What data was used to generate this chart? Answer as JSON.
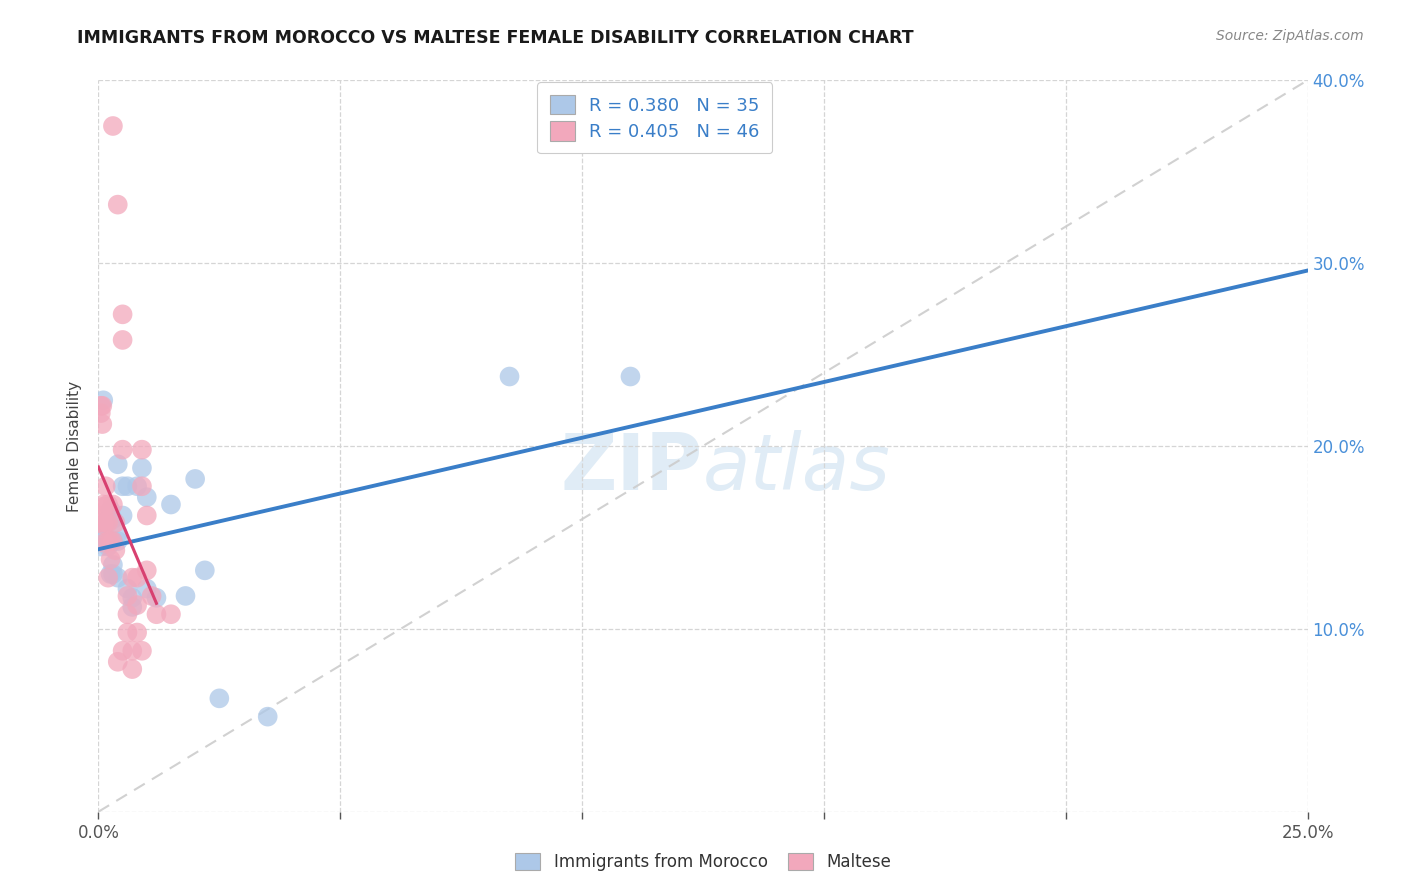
{
  "title": "IMMIGRANTS FROM MOROCCO VS MALTESE FEMALE DISABILITY CORRELATION CHART",
  "source": "Source: ZipAtlas.com",
  "ylabel": "Female Disability",
  "xlim": [
    0.0,
    0.25
  ],
  "ylim": [
    0.0,
    0.4
  ],
  "xticks": [
    0.0,
    0.05,
    0.1,
    0.15,
    0.2,
    0.25
  ],
  "yticks": [
    0.0,
    0.1,
    0.2,
    0.3,
    0.4
  ],
  "legend1_label": "Immigrants from Morocco",
  "legend2_label": "Maltese",
  "R1": 0.38,
  "N1": 35,
  "R2": 0.405,
  "N2": 46,
  "color_blue": "#adc8e8",
  "color_pink": "#f2a8bc",
  "line_blue": "#3a7ec8",
  "line_pink": "#d84070",
  "diag_color": "#cccccc",
  "watermark_color": "#cce0f0",
  "blue_points": [
    [
      0.0005,
      0.145
    ],
    [
      0.001,
      0.225
    ],
    [
      0.001,
      0.155
    ],
    [
      0.0015,
      0.15
    ],
    [
      0.002,
      0.16
    ],
    [
      0.002,
      0.145
    ],
    [
      0.0025,
      0.165
    ],
    [
      0.0025,
      0.13
    ],
    [
      0.003,
      0.135
    ],
    [
      0.003,
      0.13
    ],
    [
      0.003,
      0.16
    ],
    [
      0.003,
      0.148
    ],
    [
      0.004,
      0.19
    ],
    [
      0.004,
      0.148
    ],
    [
      0.004,
      0.152
    ],
    [
      0.004,
      0.128
    ],
    [
      0.005,
      0.178
    ],
    [
      0.005,
      0.162
    ],
    [
      0.006,
      0.178
    ],
    [
      0.006,
      0.122
    ],
    [
      0.007,
      0.117
    ],
    [
      0.007,
      0.112
    ],
    [
      0.008,
      0.178
    ],
    [
      0.009,
      0.188
    ],
    [
      0.01,
      0.122
    ],
    [
      0.01,
      0.172
    ],
    [
      0.012,
      0.117
    ],
    [
      0.015,
      0.168
    ],
    [
      0.018,
      0.118
    ],
    [
      0.02,
      0.182
    ],
    [
      0.022,
      0.132
    ],
    [
      0.025,
      0.062
    ],
    [
      0.035,
      0.052
    ],
    [
      0.085,
      0.238
    ],
    [
      0.11,
      0.238
    ]
  ],
  "pink_points": [
    [
      0.0003,
      0.158
    ],
    [
      0.0005,
      0.222
    ],
    [
      0.0005,
      0.218
    ],
    [
      0.0008,
      0.222
    ],
    [
      0.0008,
      0.212
    ],
    [
      0.001,
      0.168
    ],
    [
      0.001,
      0.162
    ],
    [
      0.001,
      0.157
    ],
    [
      0.0012,
      0.147
    ],
    [
      0.0012,
      0.167
    ],
    [
      0.0015,
      0.178
    ],
    [
      0.0015,
      0.158
    ],
    [
      0.002,
      0.168
    ],
    [
      0.002,
      0.158
    ],
    [
      0.002,
      0.148
    ],
    [
      0.002,
      0.128
    ],
    [
      0.0025,
      0.148
    ],
    [
      0.0025,
      0.138
    ],
    [
      0.003,
      0.168
    ],
    [
      0.003,
      0.148
    ],
    [
      0.0035,
      0.158
    ],
    [
      0.0035,
      0.143
    ],
    [
      0.004,
      0.082
    ],
    [
      0.005,
      0.088
    ],
    [
      0.005,
      0.272
    ],
    [
      0.005,
      0.198
    ],
    [
      0.006,
      0.118
    ],
    [
      0.006,
      0.108
    ],
    [
      0.006,
      0.098
    ],
    [
      0.007,
      0.088
    ],
    [
      0.007,
      0.078
    ],
    [
      0.007,
      0.128
    ],
    [
      0.008,
      0.113
    ],
    [
      0.008,
      0.128
    ],
    [
      0.008,
      0.098
    ],
    [
      0.009,
      0.088
    ],
    [
      0.009,
      0.198
    ],
    [
      0.009,
      0.178
    ],
    [
      0.01,
      0.162
    ],
    [
      0.01,
      0.132
    ],
    [
      0.011,
      0.118
    ],
    [
      0.012,
      0.108
    ],
    [
      0.015,
      0.108
    ],
    [
      0.003,
      0.375
    ],
    [
      0.004,
      0.332
    ],
    [
      0.005,
      0.258
    ]
  ]
}
